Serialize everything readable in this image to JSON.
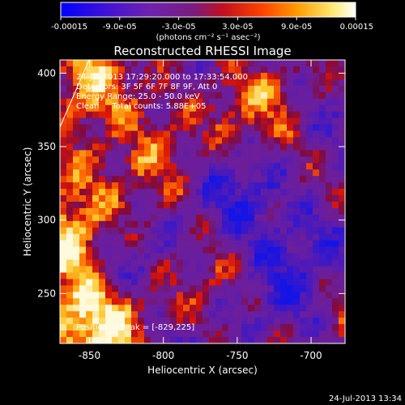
{
  "chart_data": {
    "type": "heatmap",
    "title": "Reconstructed RHESSI Image",
    "xlabel": "Heliocentric X (arcsec)",
    "ylabel": "Heliocentric Y (arcsec)",
    "xlim": [
      -870,
      -677
    ],
    "ylim": [
      216,
      409
    ],
    "x_ticks": [
      -850,
      -800,
      -750,
      -700
    ],
    "y_ticks": [
      250,
      300,
      350,
      400
    ],
    "colorbar": {
      "range": [
        -0.00015,
        0.00015
      ],
      "ticks": [
        -0.00015,
        -9e-05,
        -3e-05,
        3e-05,
        9e-05,
        0.00015
      ],
      "tick_labels": [
        "-0.00015",
        "-9.0e-05",
        "-3.0e-05",
        "3.0e-05",
        "9.0e-05",
        "0.00015"
      ],
      "unit_label": "(photons cm⁻² s⁻¹ asec⁻²)",
      "colormap": [
        "#0000ff",
        "#5b1fb0",
        "#7a22a0",
        "#b0103a",
        "#e61e00",
        "#ff8c00",
        "#ffe060",
        "#ffffff"
      ]
    },
    "peak": [
      -829,
      225
    ],
    "grid": false,
    "annotations": [
      "24-Jul-2013 17:29:20.000 to 17:33:54.000",
      "Detectors: 3F 5F 6F 7F 8F 9F, Att 0",
      "Energy Range: 25.0 - 50.0 keV",
      "Clean     Total counts: 5.88E+05",
      "Position of Peak = [-829,225]"
    ]
  },
  "footer_timestamp": "24-Jul-2013 13:34"
}
